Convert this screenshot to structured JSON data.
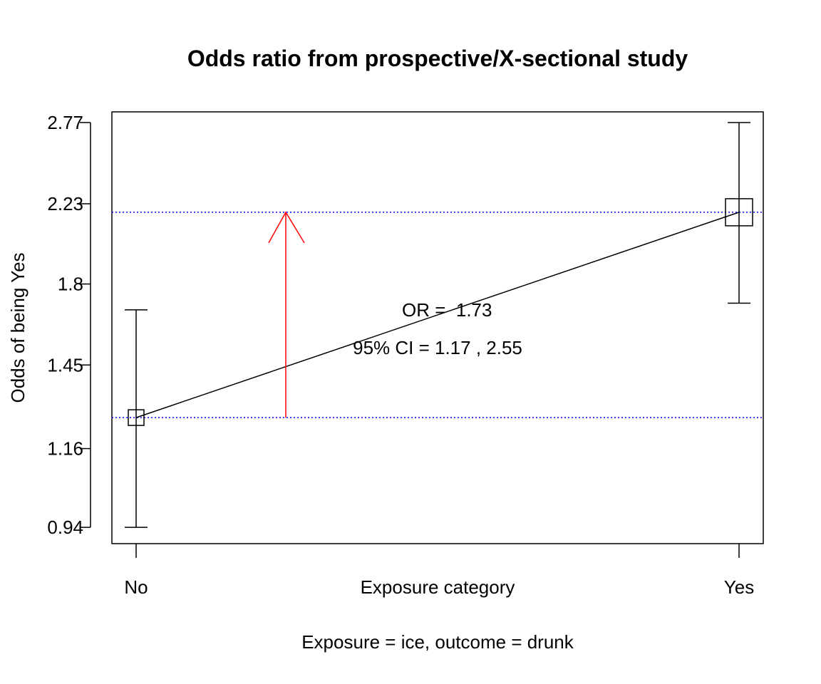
{
  "chart_data": {
    "type": "line",
    "title": "Odds ratio from prospective/X-sectional study",
    "xlabel": "Exposure category",
    "ylabel": "Odds of being Yes",
    "subtitle": "Exposure = ice, outcome = drunk",
    "scale": "log",
    "categories": [
      "No",
      "Yes"
    ],
    "yticks": [
      0.94,
      1.16,
      1.45,
      1.8,
      2.23,
      2.77
    ],
    "ytick_labels": [
      "0.94",
      "1.16",
      "1.45",
      "1.8",
      "2.23",
      "2.77"
    ],
    "ylim": [
      0.9,
      2.85
    ],
    "points": [
      {
        "category": "No",
        "odds": 1.26,
        "ci_low": 0.94,
        "ci_high": 1.68,
        "box": "small"
      },
      {
        "category": "Yes",
        "odds": 2.18,
        "ci_low": 1.71,
        "ci_high": 2.77,
        "box": "large"
      }
    ],
    "reference_lines": [
      1.26,
      2.18
    ],
    "or_label": "OR =  1.73",
    "ci_label": "95% CI = 1.17 , 2.55",
    "colors": {
      "reference_lines": "#0000ff",
      "arrow": "#ff0000",
      "marks": "#000000"
    }
  }
}
